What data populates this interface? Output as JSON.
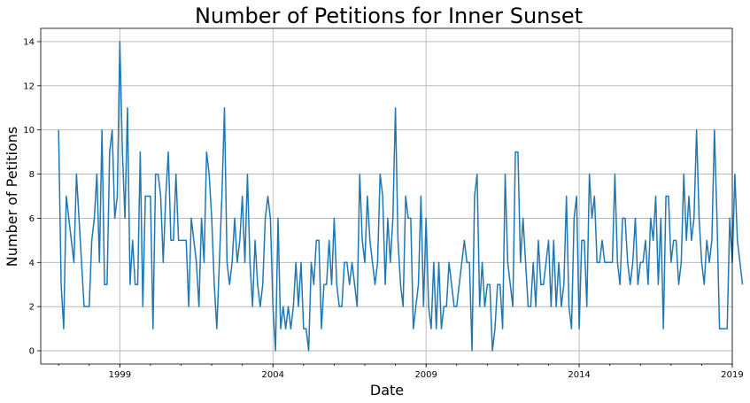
{
  "chart_data": {
    "type": "line",
    "title": "Number of Petitions for Inner Sunset",
    "xlabel": "Date",
    "ylabel": "Number of Petitions",
    "xlim": [
      "1996-06",
      "2019-01"
    ],
    "ylim": [
      -0.6,
      14.6
    ],
    "x_ticks": [
      "1999",
      "2004",
      "2009",
      "2014",
      "2019"
    ],
    "y_ticks": [
      0,
      2,
      4,
      6,
      8,
      10,
      12,
      14
    ],
    "grid": true,
    "x_start": "1997-01",
    "x_step": "1 month",
    "series": [
      {
        "values": [
          10,
          3,
          1,
          7,
          6,
          5,
          4,
          8,
          6,
          4,
          2,
          2,
          2,
          5,
          6,
          8,
          4,
          10,
          3,
          3,
          9,
          10,
          6,
          7,
          14,
          9,
          6,
          11,
          3,
          5,
          3,
          3,
          9,
          2,
          7,
          7,
          7,
          1,
          8,
          8,
          7,
          4,
          7,
          9,
          5,
          5,
          8,
          5,
          5,
          5,
          5,
          2,
          6,
          5,
          4,
          2,
          6,
          4,
          9,
          8,
          6,
          3,
          1,
          4,
          7,
          11,
          4,
          3,
          4,
          6,
          4,
          5,
          7,
          4,
          8,
          4,
          2,
          5,
          3,
          2,
          3,
          6,
          7,
          6,
          2,
          0,
          6,
          1,
          2,
          1,
          2,
          1,
          2,
          4,
          2,
          4,
          1,
          1,
          0,
          4,
          3,
          5,
          5,
          1,
          3,
          3,
          5,
          3,
          6,
          3,
          2,
          2,
          4,
          4,
          3,
          4,
          3,
          2,
          8,
          5,
          4,
          7,
          5,
          4,
          3,
          4,
          8,
          7,
          3,
          6,
          4,
          6,
          11,
          5,
          3,
          2,
          7,
          6,
          6,
          1,
          2,
          3,
          7,
          2,
          6,
          2,
          1,
          4,
          1,
          4,
          1,
          2,
          2,
          4,
          3,
          2,
          2,
          3,
          4,
          5,
          4,
          4,
          0,
          7,
          8,
          2,
          4,
          2,
          3,
          3,
          0,
          1,
          3,
          3,
          1,
          8,
          4,
          3,
          2,
          9,
          9,
          4,
          6,
          4,
          2,
          2,
          4,
          2,
          5,
          3,
          3,
          4,
          5,
          2,
          5,
          2,
          4,
          2,
          3,
          7,
          2,
          1,
          6,
          7,
          1,
          5,
          5,
          2,
          8,
          6,
          7,
          4,
          4,
          5,
          4,
          4,
          4,
          4,
          8,
          4,
          3,
          6,
          6,
          4,
          3,
          4,
          6,
          3,
          4,
          4,
          5,
          3,
          6,
          5,
          7,
          3,
          6,
          1,
          7,
          7,
          4,
          5,
          5,
          3,
          4,
          8,
          5,
          7,
          5,
          6,
          10,
          6,
          4,
          3,
          5,
          4,
          5,
          10,
          6,
          1,
          1,
          1,
          1,
          6,
          4,
          8,
          5,
          4,
          3
        ]
      }
    ]
  }
}
